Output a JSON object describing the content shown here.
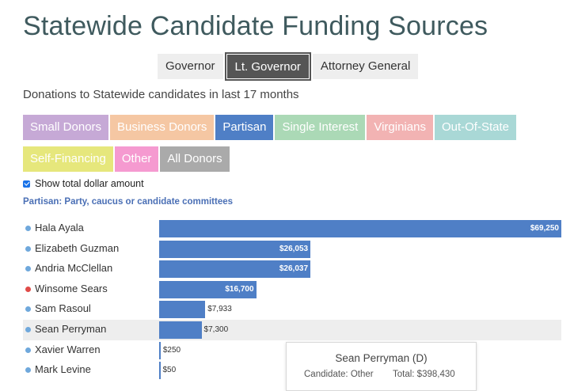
{
  "title": "Statewide Candidate Funding Sources",
  "office_tabs": [
    {
      "label": "Governor",
      "active": false
    },
    {
      "label": "Lt. Governor",
      "active": true
    },
    {
      "label": "Attorney General",
      "active": false
    }
  ],
  "subtitle": "Donations to Statewide candidates in last 17 months",
  "donor_buttons": [
    {
      "label": "Small Donors",
      "color": "#c6a9d6"
    },
    {
      "label": "Business Donors",
      "color": "#f5c7a3"
    },
    {
      "label": "Partisan",
      "color": "#4f7fc6",
      "active": true
    },
    {
      "label": "Single Interest",
      "color": "#abd9b6"
    },
    {
      "label": "Virginians",
      "color": "#f2b3b3"
    },
    {
      "label": "Out-Of-State",
      "color": "#a9d8d6"
    },
    {
      "label": "Self-Financing",
      "color": "#e6e77c"
    },
    {
      "label": "Other",
      "color": "#f59ad0"
    },
    {
      "label": "All Donors",
      "color": "#aaaaaa"
    }
  ],
  "show_total_label": "Show total dollar amount",
  "show_total_checked": true,
  "category_description": "Partisan: Party, caucus or candidate committees",
  "colors": {
    "democrat_dot": "#6fa8dc",
    "republican_dot": "#e04b48",
    "bar": "#4f7fc6"
  },
  "chart_data": {
    "type": "bar",
    "orientation": "horizontal",
    "xlim": [
      0,
      69250
    ],
    "categories": [
      "Hala Ayala",
      "Elizabeth Guzman",
      "Andria McClellan",
      "Winsome Sears",
      "Sam Rasoul",
      "Sean Perryman",
      "Xavier Warren",
      "Mark Levine"
    ],
    "values": [
      69250,
      26053,
      26037,
      16700,
      7933,
      7300,
      250,
      50
    ],
    "value_labels": [
      "$69,250",
      "$26,053",
      "$26,037",
      "$16,700",
      "$7,933",
      "$7,300",
      "$250",
      "$50"
    ],
    "party": [
      "D",
      "D",
      "D",
      "R",
      "D",
      "D",
      "D",
      "D"
    ],
    "highlighted": "Sean Perryman"
  },
  "tooltip": {
    "name": "Sean Perryman (D)",
    "candidate_line": "Candidate: Other",
    "total_line": "Total: $398,430"
  }
}
